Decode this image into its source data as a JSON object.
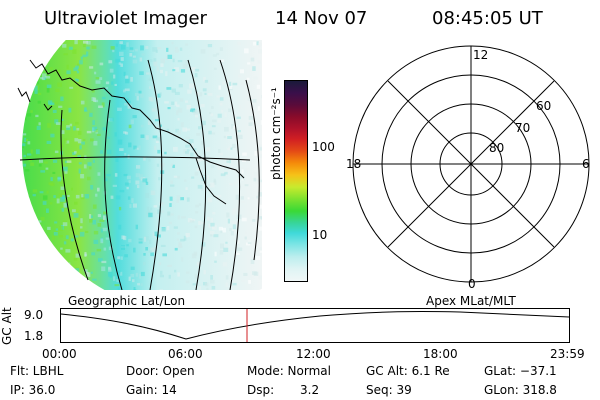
{
  "header": {
    "title": "Ultraviolet Imager",
    "date": "14 Nov 07",
    "time": "08:45:05 UT"
  },
  "colorbar": {
    "unit_label": "photon cm⁻²s⁻¹",
    "ticks": [
      "100",
      "10"
    ],
    "colors": [
      "#1a1a3a",
      "#3a0f4a",
      "#5a0b3a",
      "#8a0b2a",
      "#b0122a",
      "#d11f23",
      "#e44a16",
      "#f58b0a",
      "#f6c218",
      "#c8ea2e",
      "#7ee22f",
      "#3ad936",
      "#37d59a",
      "#3fd9d9",
      "#7fe5e5",
      "#bdeeee",
      "#dff4f4",
      "#f0f7f7"
    ]
  },
  "panels": {
    "left_label": "Geographic Lat/Lon",
    "right_label": "Apex MLat/MLT"
  },
  "polar": {
    "mlt_labels": {
      "top": "12",
      "left": "18",
      "right": "6",
      "bottom": "0"
    },
    "lat_labels": [
      "60",
      "70",
      "80"
    ]
  },
  "altitude": {
    "y_label": "GC Alt",
    "y_ticks": [
      "9.0",
      "1.8"
    ],
    "x_ticks": [
      "00:00",
      "06:00",
      "12:00",
      "18:00",
      "23:59"
    ]
  },
  "footer": {
    "row1": {
      "flt": "Flt: LBHL",
      "door": "Door: Open",
      "mode": "Mode: Normal",
      "gc_alt": "GC Alt: 6.1 Re",
      "glat": "GLat: −37.1"
    },
    "row2": {
      "ip": "IP: 36.0",
      "gain": "Gain: 14",
      "dsp_label": "Dsp:",
      "dsp_value": "3.2",
      "seq": "Seq: 39",
      "glon": "GLon: 318.8"
    }
  }
}
